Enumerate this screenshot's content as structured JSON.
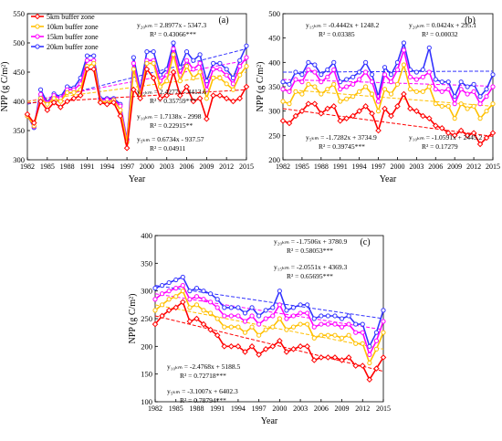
{
  "colors": {
    "5km": "#ff0000",
    "10km": "#ffc000",
    "15km": "#ff00ff",
    "20km": "#3333ff"
  },
  "chart_data": [
    {
      "type": "line",
      "panel_label": "(a)",
      "xlabel": "Year",
      "ylabel": "NPP (g C/m²)",
      "xlim": [
        1982,
        2015
      ],
      "ylim": [
        300,
        550
      ],
      "xticks": [
        "1982",
        "1985",
        "1988",
        "1991",
        "1994",
        "1997",
        "2000",
        "2003",
        "2006",
        "2009",
        "2012",
        "2015"
      ],
      "yticks": [
        "300",
        "350",
        "400",
        "450",
        "500",
        "550"
      ],
      "legend_position": "top-left",
      "x": [
        1982,
        1983,
        1984,
        1985,
        1986,
        1987,
        1988,
        1989,
        1990,
        1991,
        1992,
        1993,
        1994,
        1995,
        1996,
        1997,
        1998,
        1999,
        2000,
        2001,
        2002,
        2003,
        2004,
        2005,
        2006,
        2007,
        2008,
        2009,
        2010,
        2011,
        2012,
        2013,
        2014,
        2015
      ],
      "series": [
        {
          "name": "5km buffer zone",
          "color_key": "5km",
          "values": [
            378,
            363,
            400,
            385,
            398,
            390,
            400,
            405,
            410,
            455,
            455,
            398,
            395,
            398,
            375,
            320,
            420,
            405,
            455,
            440,
            405,
            410,
            450,
            410,
            425,
            400,
            405,
            370,
            410,
            410,
            405,
            400,
            405,
            425
          ]
        },
        {
          "name": "10km buffer zone",
          "color_key": "10km",
          "values": [
            375,
            358,
            405,
            395,
            405,
            400,
            415,
            415,
            420,
            460,
            465,
            400,
            398,
            402,
            385,
            330,
            455,
            410,
            465,
            465,
            425,
            435,
            480,
            435,
            460,
            440,
            450,
            405,
            440,
            440,
            430,
            420,
            445,
            460
          ]
        },
        {
          "name": "15km buffer zone",
          "color_key": "15km",
          "values": [
            375,
            357,
            412,
            397,
            410,
            405,
            420,
            420,
            430,
            470,
            470,
            402,
            403,
            403,
            392,
            333,
            465,
            415,
            470,
            470,
            435,
            445,
            490,
            445,
            470,
            455,
            465,
            420,
            455,
            455,
            445,
            430,
            460,
            475
          ]
        },
        {
          "name": "20km buffer zone",
          "color_key": "20km",
          "values": [
            375,
            355,
            420,
            398,
            413,
            408,
            425,
            423,
            440,
            478,
            478,
            405,
            405,
            405,
            395,
            335,
            475,
            420,
            485,
            485,
            445,
            455,
            500,
            458,
            485,
            470,
            480,
            435,
            465,
            465,
            455,
            440,
            470,
            495
          ]
        }
      ],
      "trends": [
        {
          "color_key": "20km",
          "y_start": 395,
          "y_end": 490,
          "eq": "y₂₀ₖₘ = 2.8977x - 5347.3",
          "r2": "R² = 0.43066***"
        },
        {
          "color_key": "15km",
          "y_start": 400,
          "y_end": 470,
          "eq": "y₁₅ₖₘ = 2.4277x - 4413.6",
          "r2": "R² = 0.35759***"
        },
        {
          "color_key": "10km",
          "y_start": 400,
          "y_end": 450,
          "eq": "y₁₀ₖₘ = 1.7138x - 2998",
          "r2": "R² = 0.22915**"
        },
        {
          "color_key": "5km",
          "y_start": 397,
          "y_end": 420,
          "eq": "y₅ₖₘ = 0.6734x - 937.57",
          "r2": "R² = 0.04911"
        }
      ]
    },
    {
      "type": "line",
      "panel_label": "(b)",
      "xlabel": "Year",
      "ylabel": "NPP (g C/m²)",
      "xlim": [
        1982,
        2015
      ],
      "ylim": [
        200,
        500
      ],
      "xticks": [
        "1982",
        "1985",
        "1988",
        "1991",
        "1994",
        "1997",
        "2000",
        "2003",
        "2006",
        "2009",
        "2012",
        "2015"
      ],
      "yticks": [
        "200",
        "250",
        "300",
        "350",
        "400",
        "450",
        "500"
      ],
      "x": [
        1982,
        1983,
        1984,
        1985,
        1986,
        1987,
        1988,
        1989,
        1990,
        1991,
        1992,
        1993,
        1994,
        1995,
        1996,
        1997,
        1998,
        1999,
        2000,
        2001,
        2002,
        2003,
        2004,
        2005,
        2006,
        2007,
        2008,
        2009,
        2010,
        2011,
        2012,
        2013,
        2014,
        2015
      ],
      "series": [
        {
          "name": "5km",
          "color_key": "5km",
          "values": [
            280,
            275,
            290,
            300,
            315,
            315,
            295,
            305,
            310,
            280,
            285,
            290,
            300,
            310,
            295,
            260,
            305,
            290,
            310,
            335,
            305,
            300,
            290,
            285,
            270,
            265,
            255,
            250,
            260,
            250,
            255,
            232,
            245,
            255
          ]
        },
        {
          "name": "10km",
          "color_key": "10km",
          "values": [
            320,
            315,
            340,
            335,
            355,
            350,
            335,
            345,
            355,
            320,
            325,
            330,
            340,
            350,
            335,
            300,
            345,
            335,
            355,
            395,
            345,
            340,
            340,
            350,
            315,
            310,
            310,
            285,
            315,
            305,
            310,
            285,
            300,
            315
          ]
        },
        {
          "name": "15km",
          "color_key": "15km",
          "values": [
            345,
            340,
            365,
            360,
            385,
            380,
            360,
            370,
            385,
            345,
            350,
            355,
            365,
            380,
            360,
            320,
            375,
            360,
            385,
            425,
            370,
            365,
            370,
            380,
            345,
            340,
            345,
            315,
            345,
            335,
            340,
            315,
            330,
            350
          ]
        },
        {
          "name": "20km",
          "color_key": "20km",
          "values": [
            360,
            355,
            380,
            375,
            400,
            395,
            375,
            385,
            400,
            360,
            365,
            370,
            380,
            400,
            375,
            330,
            390,
            375,
            400,
            440,
            385,
            380,
            385,
            430,
            365,
            360,
            360,
            330,
            360,
            350,
            355,
            330,
            345,
            375
          ]
        }
      ],
      "trends": [
        {
          "color_key": "20km",
          "y_start": 380,
          "y_end": 382,
          "eq": "y₂₀ₖₘ = 0.0424x + 295.1",
          "r2": "R² = 0.00032"
        },
        {
          "color_key": "15km",
          "y_start": 365,
          "y_end": 351,
          "eq": "y₁₅ₖₘ = -0.4442x + 1248.2",
          "r2": "R² = 0.03385"
        },
        {
          "color_key": "10km",
          "y_start": 345,
          "y_end": 310,
          "eq": "y₁₀ₖₘ = -1.0591x + 2445.2",
          "r2": "R² = 0.17279"
        },
        {
          "color_key": "5km",
          "y_start": 305,
          "y_end": 248,
          "eq": "y₅ₖₘ = -1.7282x + 3734.9",
          "r2": "R² = 0.39745***"
        }
      ]
    },
    {
      "type": "line",
      "panel_label": "(c)",
      "xlabel": "Year",
      "ylabel": "NPP (g C/m²)",
      "xlim": [
        1982,
        2015
      ],
      "ylim": [
        100,
        400
      ],
      "xticks": [
        "1982",
        "1985",
        "1988",
        "1991",
        "1994",
        "1997",
        "2000",
        "2003",
        "2006",
        "2009",
        "2012",
        "2015"
      ],
      "yticks": [
        "100",
        "150",
        "200",
        "250",
        "300",
        "350",
        "400"
      ],
      "x": [
        1982,
        1983,
        1984,
        1985,
        1986,
        1987,
        1988,
        1989,
        1990,
        1991,
        1992,
        1993,
        1994,
        1995,
        1996,
        1997,
        1998,
        1999,
        2000,
        2001,
        2002,
        2003,
        2004,
        2005,
        2006,
        2007,
        2008,
        2009,
        2010,
        2011,
        2012,
        2013,
        2014,
        2015
      ],
      "series": [
        {
          "name": "5km",
          "color_key": "5km",
          "values": [
            240,
            255,
            265,
            270,
            280,
            245,
            250,
            240,
            230,
            220,
            200,
            200,
            200,
            190,
            200,
            185,
            195,
            200,
            210,
            190,
            195,
            200,
            200,
            175,
            180,
            180,
            180,
            175,
            180,
            165,
            165,
            140,
            160,
            180
          ]
        },
        {
          "name": "10km",
          "color_key": "10km",
          "values": [
            265,
            275,
            285,
            290,
            300,
            270,
            275,
            265,
            260,
            250,
            235,
            235,
            235,
            225,
            235,
            220,
            230,
            235,
            250,
            230,
            235,
            240,
            240,
            215,
            220,
            220,
            220,
            215,
            220,
            205,
            205,
            170,
            195,
            225
          ]
        },
        {
          "name": "15km",
          "color_key": "15km",
          "values": [
            285,
            295,
            300,
            305,
            310,
            285,
            290,
            285,
            280,
            270,
            255,
            255,
            255,
            245,
            255,
            240,
            250,
            255,
            275,
            250,
            255,
            260,
            260,
            235,
            240,
            240,
            240,
            235,
            240,
            225,
            225,
            185,
            210,
            245
          ]
        },
        {
          "name": "20km",
          "color_key": "20km",
          "values": [
            305,
            310,
            315,
            320,
            325,
            300,
            305,
            300,
            295,
            285,
            270,
            270,
            270,
            260,
            270,
            255,
            265,
            270,
            300,
            265,
            270,
            275,
            275,
            250,
            255,
            255,
            255,
            250,
            255,
            240,
            240,
            200,
            225,
            265
          ]
        }
      ],
      "trends": [
        {
          "color_key": "20km",
          "y_start": 310,
          "y_end": 250,
          "eq": "y₂₀ₖₘ = -1.7506x + 3780.9",
          "r2": "R² = 0.58053***"
        },
        {
          "color_key": "15km",
          "y_start": 295,
          "y_end": 230,
          "eq": "y₁₅ₖₘ = -2.0551x + 4369.3",
          "r2": "R² = 0.65695***"
        },
        {
          "color_key": "10km",
          "y_start": 275,
          "y_end": 195,
          "eq": "y₁₀ₖₘ = -2.4768x + 5188.5",
          "r2": "R² = 0.72718***"
        },
        {
          "color_key": "5km",
          "y_start": 255,
          "y_end": 155,
          "eq": "y₅ₖₘ = -3.1007x + 6402.3",
          "r2": "R² = 0.78794***"
        }
      ]
    }
  ]
}
